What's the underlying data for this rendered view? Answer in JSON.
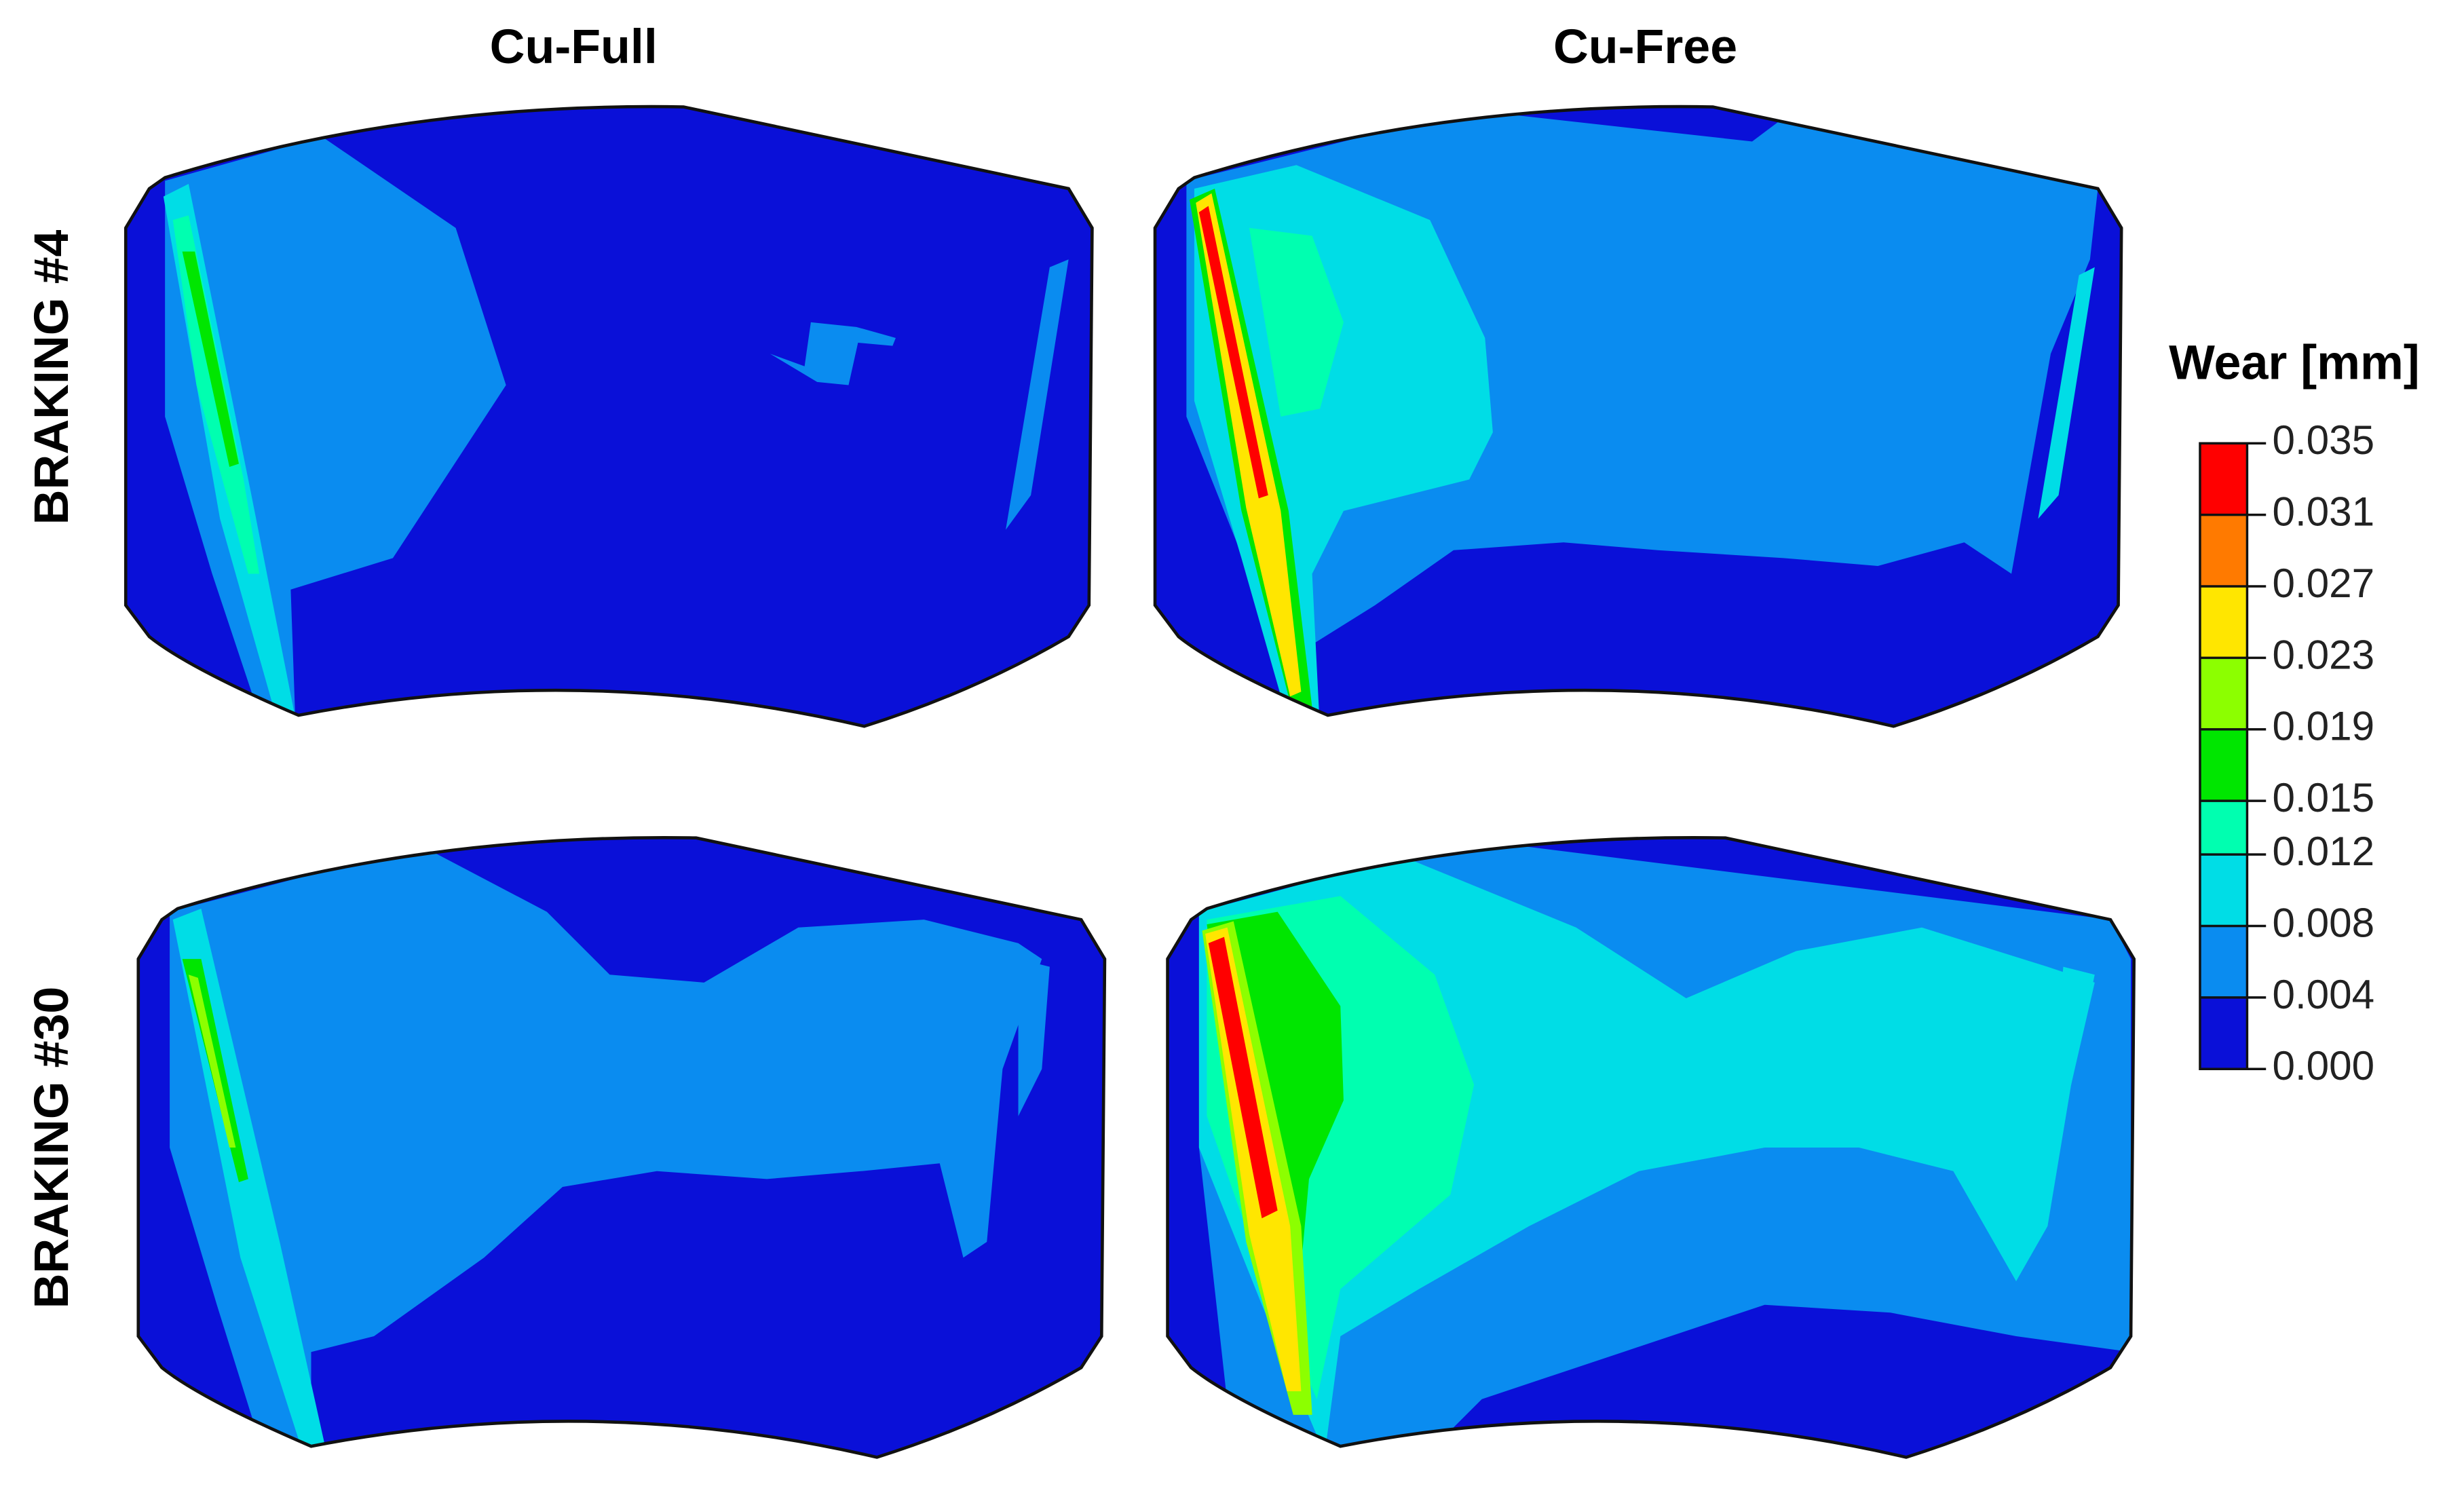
{
  "column_titles": [
    "Cu-Full",
    "Cu-Free"
  ],
  "row_labels": [
    "BRAKING #4",
    "BRAKING #30"
  ],
  "colorbar": {
    "title": "Wear [mm]",
    "range": [
      0,
      0.035
    ],
    "ticks": [
      0.035,
      0.031,
      0.027,
      0.023,
      0.019,
      0.015,
      0.012,
      0.008,
      0.004,
      {
        "value": 0,
        "label": "0.000"
      }
    ],
    "colors": [
      "#ff0000",
      "#ff7a00",
      "#ffe600",
      "#8cff00",
      "#00e600",
      "#00ffb0",
      "#00dde6",
      "#0a8cf0",
      "#0a10d8"
    ]
  }
}
